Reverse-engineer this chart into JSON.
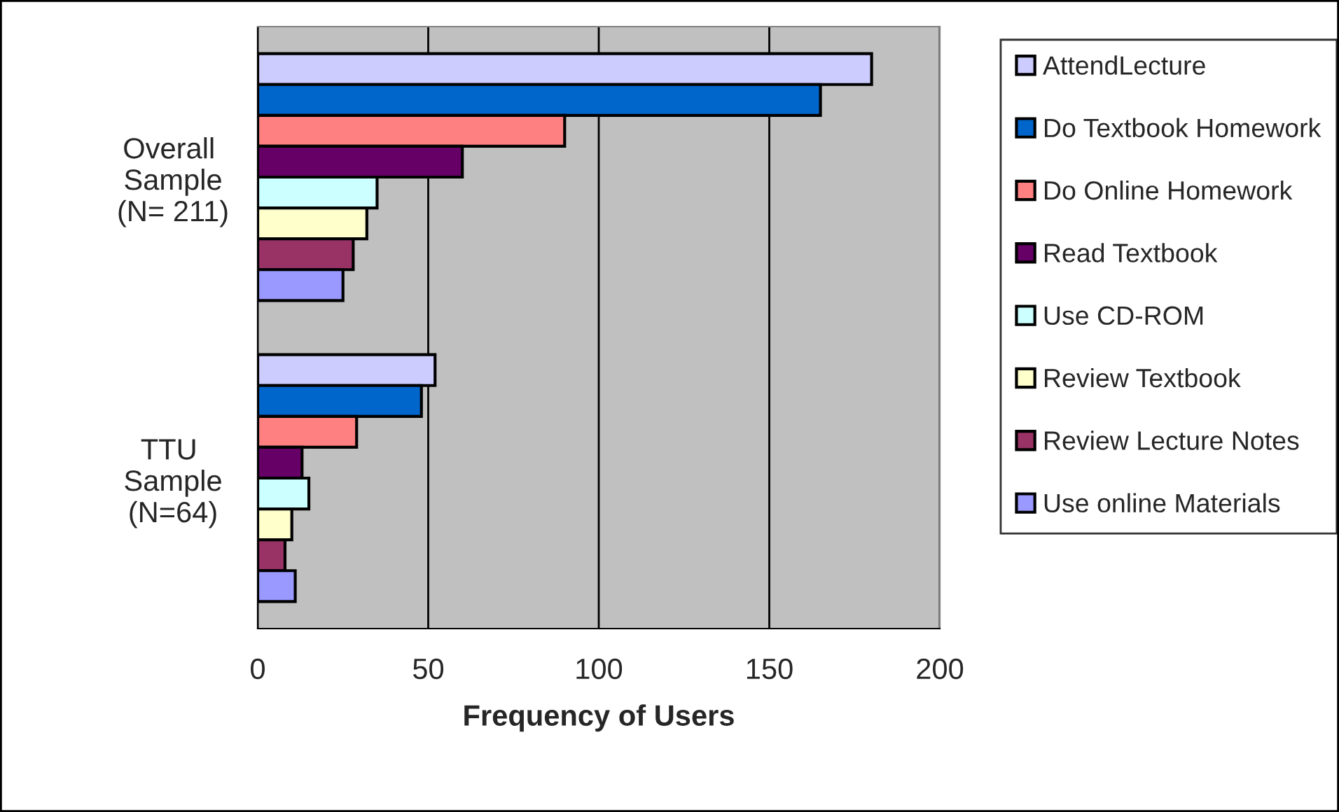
{
  "chart_data": {
    "type": "bar",
    "orientation": "horizontal",
    "xlabel": "Frequency of Users",
    "categories": [
      "Overall Sample (N= 211)",
      "TTU Sample (N=64)"
    ],
    "series": [
      {
        "name": "AttendLecture",
        "color": "#ccccff",
        "values": [
          180,
          52
        ]
      },
      {
        "name": "Do Textbook Homework",
        "color": "#0066cc",
        "values": [
          165,
          48
        ]
      },
      {
        "name": "Do Online Homework",
        "color": "#ff8080",
        "values": [
          90,
          29
        ]
      },
      {
        "name": "Read Textbook",
        "color": "#660066",
        "values": [
          60,
          13
        ]
      },
      {
        "name": "Use CD-ROM",
        "color": "#ccffff",
        "values": [
          35,
          15
        ]
      },
      {
        "name": "Review Textbook",
        "color": "#ffffcc",
        "values": [
          32,
          10
        ]
      },
      {
        "name": "Review Lecture Notes",
        "color": "#993366",
        "values": [
          28,
          8
        ]
      },
      {
        "name": "Use online Materials",
        "color": "#9999ff",
        "values": [
          25,
          11
        ]
      }
    ],
    "xlim": [
      0,
      200
    ],
    "xticks": [
      0,
      50,
      100,
      150,
      200
    ],
    "grid": "x",
    "legend": "right"
  }
}
